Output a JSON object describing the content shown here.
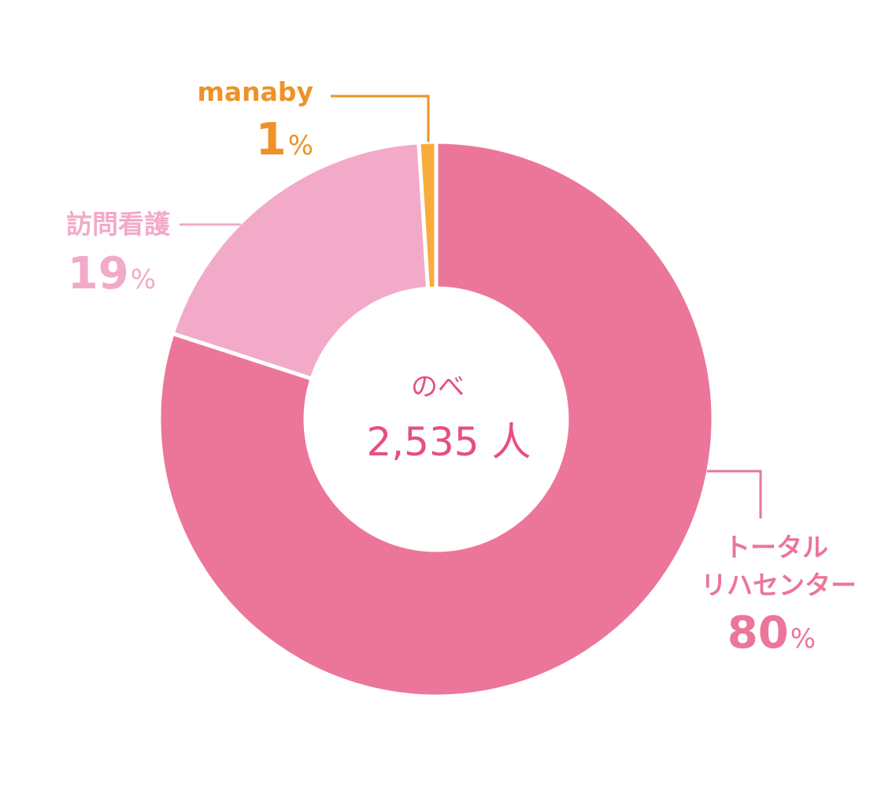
{
  "chart_data": {
    "type": "pie",
    "variant": "donut",
    "center_text": {
      "label": "のべ",
      "value": "2,535 人"
    },
    "slices": [
      {
        "name": "トータルリハセンター",
        "label_lines": [
          "トータル",
          "リハセンター"
        ],
        "value": 80,
        "value_text": "80",
        "percent_symbol": "%",
        "color": "#eb7699"
      },
      {
        "name": "訪問看護",
        "label_lines": [
          "訪問看護"
        ],
        "value": 19,
        "value_text": "19",
        "percent_symbol": "%",
        "color": "#f2aac8"
      },
      {
        "name": "manaby",
        "label_lines": [
          "manaby"
        ],
        "value": 1,
        "value_text": "1",
        "percent_symbol": "%",
        "color": "#f7ac3b"
      }
    ]
  },
  "colors": {
    "center_text": "#e6507c",
    "label_total": "#eb7699",
    "label_houmon": "#f2aac8",
    "label_manaby": "#ee9227"
  }
}
